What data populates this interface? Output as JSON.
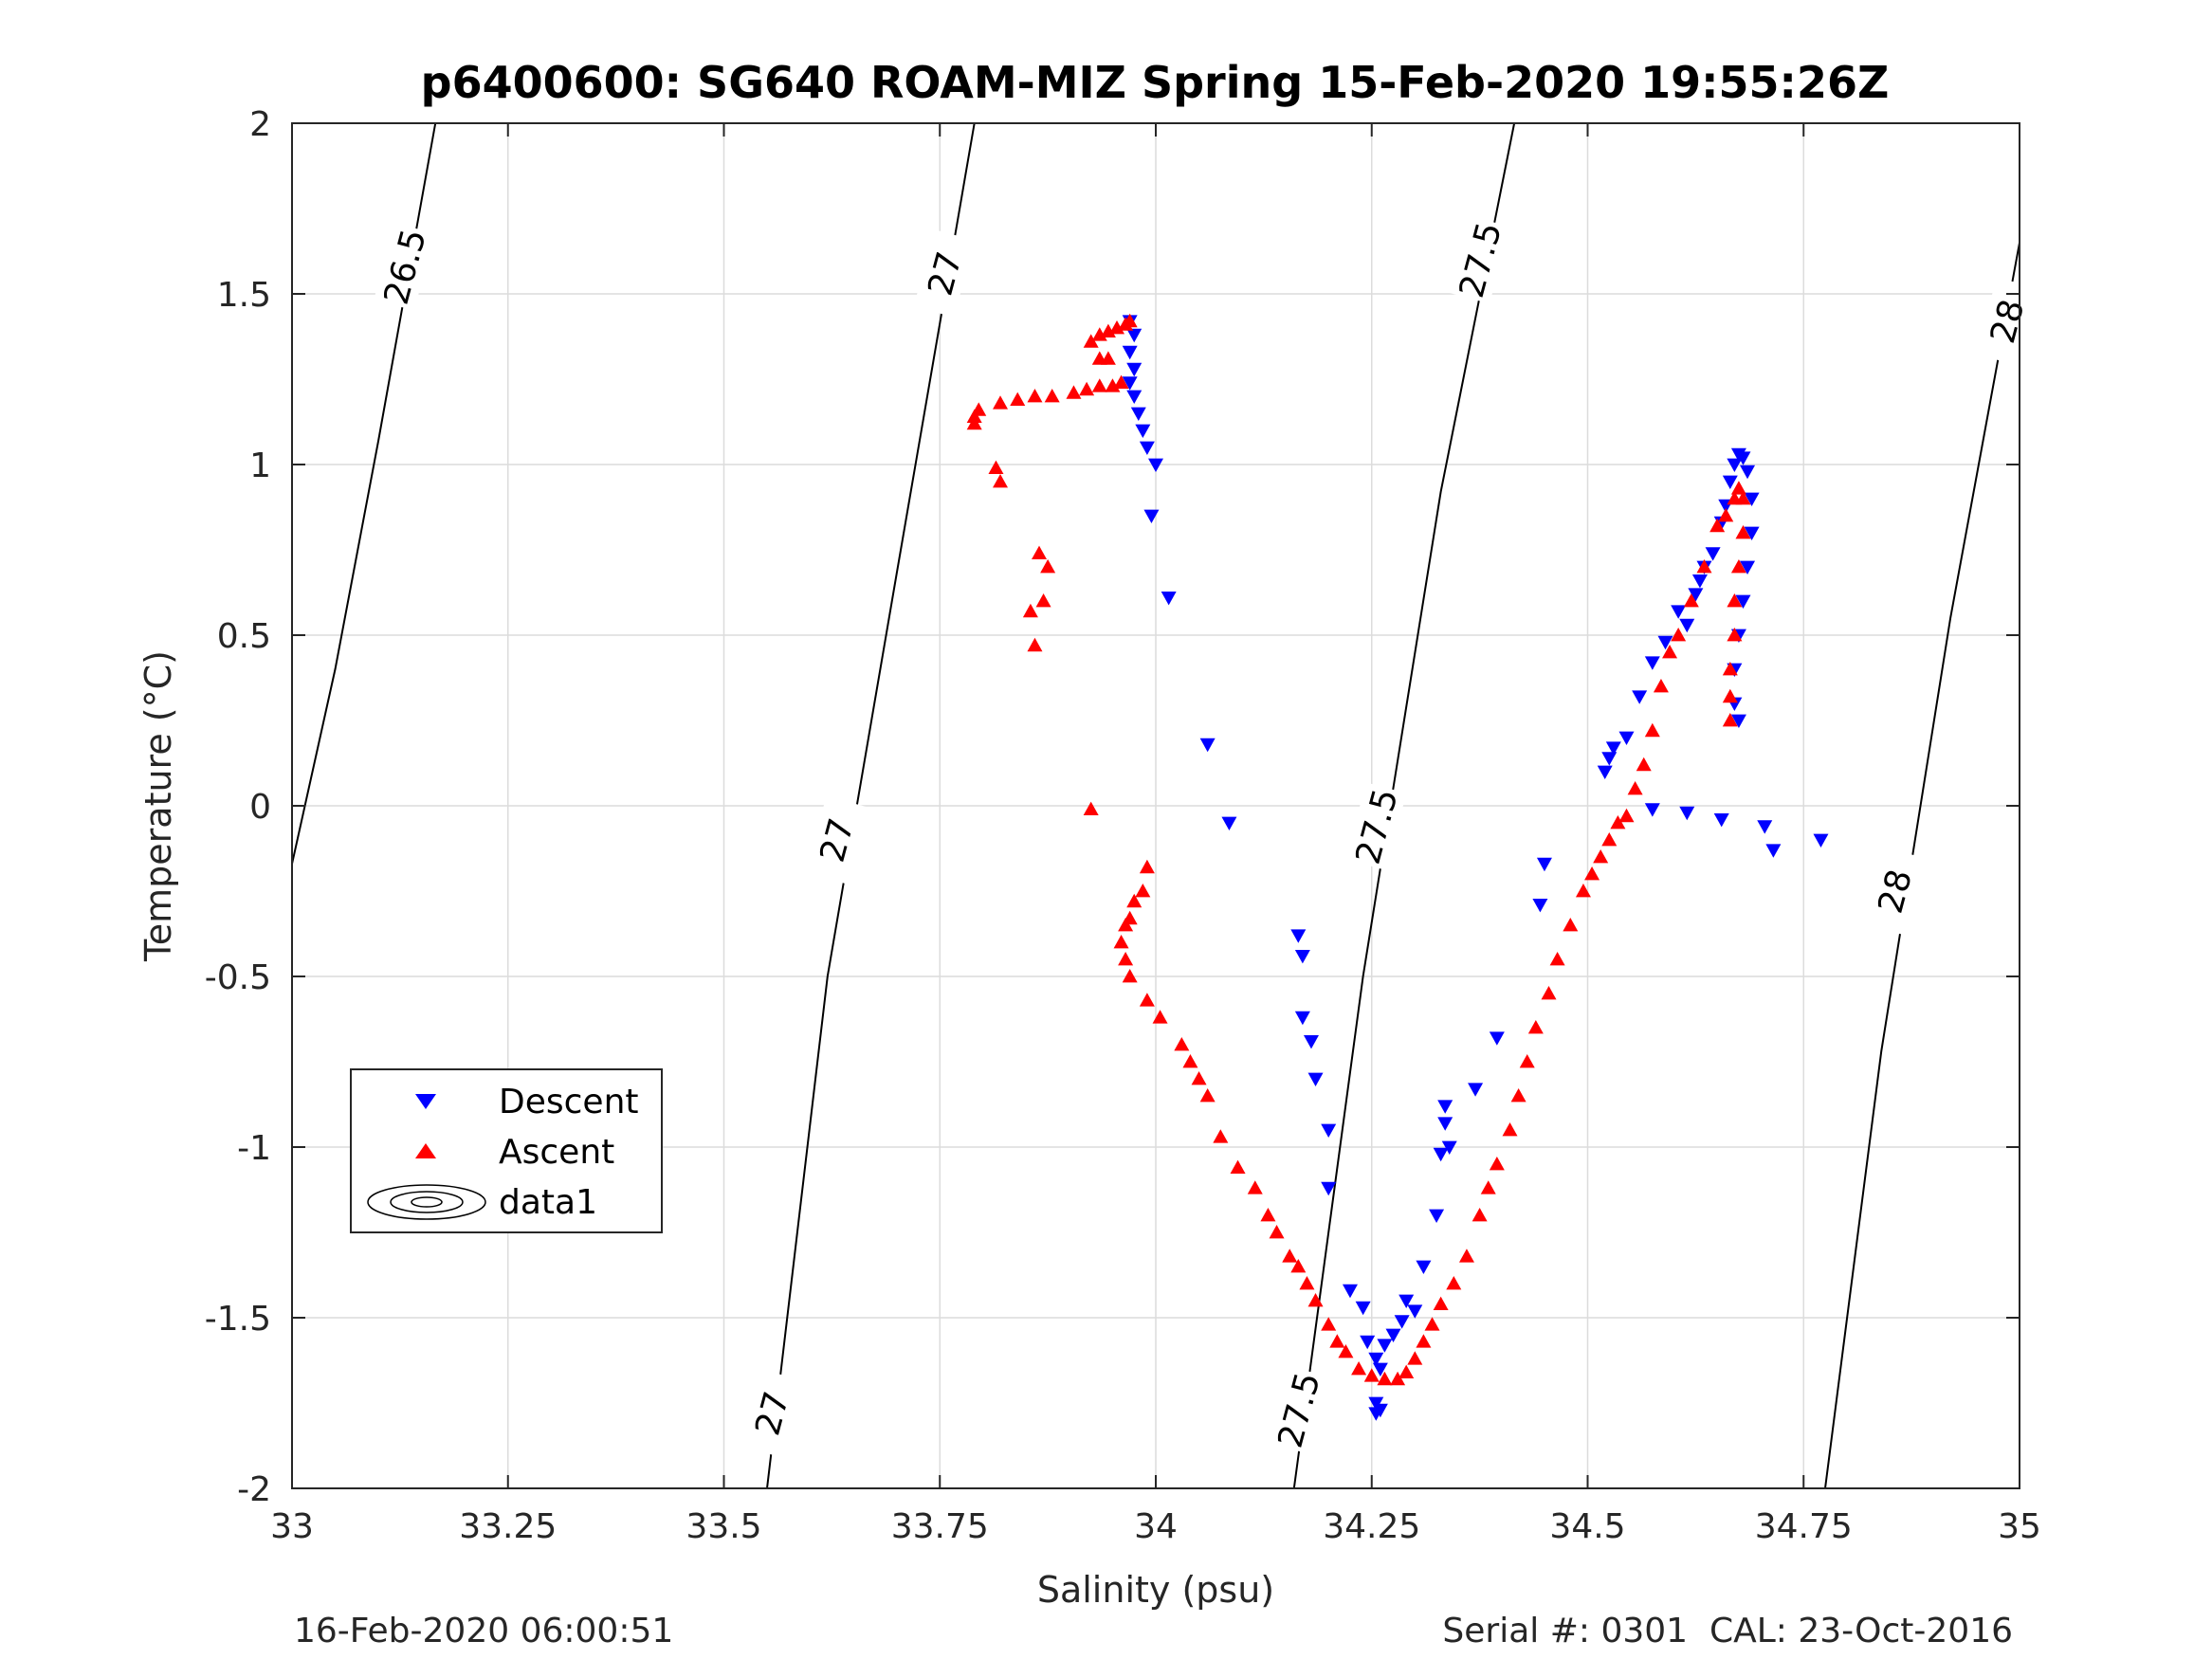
{
  "chart_data": {
    "type": "scatter",
    "title": "p6400600: SG640 ROAM-MIZ Spring 15-Feb-2020 19:55:26Z",
    "xlabel": "Salinity (psu)",
    "ylabel": "Temperature (°C)",
    "xlim": [
      33,
      35
    ],
    "ylim": [
      -2,
      2
    ],
    "xticks": [
      33,
      33.25,
      33.5,
      33.75,
      34,
      34.25,
      34.5,
      34.75,
      35
    ],
    "xtick_labels": [
      "33",
      "33.25",
      "33.5",
      "33.75",
      "34",
      "34.25",
      "34.5",
      "34.75",
      "35"
    ],
    "yticks": [
      -2,
      -1.5,
      -1,
      -0.5,
      0,
      0.5,
      1,
      1.5,
      2
    ],
    "ytick_labels": [
      "-2",
      "-1.5",
      "-1",
      "-0.5",
      "0",
      "0.5",
      "1",
      "1.5",
      "2"
    ],
    "grid": true,
    "legend_placement": "lower-left",
    "series": [
      {
        "name": "Descent",
        "marker": "triangle-down",
        "color": "#0000ff",
        "points": [
          [
            33.97,
            1.42
          ],
          [
            33.975,
            1.38
          ],
          [
            33.97,
            1.33
          ],
          [
            33.975,
            1.28
          ],
          [
            33.97,
            1.24
          ],
          [
            33.975,
            1.2
          ],
          [
            33.98,
            1.15
          ],
          [
            33.985,
            1.1
          ],
          [
            33.99,
            1.05
          ],
          [
            34.0,
            1.0
          ],
          [
            33.995,
            0.85
          ],
          [
            34.015,
            0.61
          ],
          [
            34.06,
            0.18
          ],
          [
            34.085,
            -0.05
          ],
          [
            34.165,
            -0.38
          ],
          [
            34.17,
            -0.44
          ],
          [
            34.17,
            -0.62
          ],
          [
            34.18,
            -0.69
          ],
          [
            34.185,
            -0.8
          ],
          [
            34.2,
            -0.95
          ],
          [
            34.2,
            -1.12
          ],
          [
            34.225,
            -1.42
          ],
          [
            34.24,
            -1.47
          ],
          [
            34.245,
            -1.57
          ],
          [
            34.255,
            -1.62
          ],
          [
            34.26,
            -1.65
          ],
          [
            34.265,
            -1.58
          ],
          [
            34.255,
            -1.75
          ],
          [
            34.255,
            -1.78
          ],
          [
            34.26,
            -1.77
          ],
          [
            34.275,
            -1.55
          ],
          [
            34.285,
            -1.51
          ],
          [
            34.29,
            -1.45
          ],
          [
            34.3,
            -1.48
          ],
          [
            34.31,
            -1.35
          ],
          [
            34.325,
            -1.2
          ],
          [
            34.33,
            -1.02
          ],
          [
            34.335,
            -0.93
          ],
          [
            34.335,
            -0.88
          ],
          [
            34.34,
            -1.0
          ],
          [
            34.37,
            -0.83
          ],
          [
            34.395,
            -0.68
          ],
          [
            34.445,
            -0.29
          ],
          [
            34.45,
            -0.17
          ],
          [
            34.52,
            0.1
          ],
          [
            34.525,
            0.14
          ],
          [
            34.53,
            0.17
          ],
          [
            34.545,
            0.2
          ],
          [
            34.56,
            0.32
          ],
          [
            34.575,
            0.42
          ],
          [
            34.59,
            0.48
          ],
          [
            34.605,
            0.57
          ],
          [
            34.615,
            0.53
          ],
          [
            34.625,
            0.62
          ],
          [
            34.63,
            0.66
          ],
          [
            34.635,
            0.7
          ],
          [
            34.645,
            0.74
          ],
          [
            34.655,
            0.83
          ],
          [
            34.66,
            0.88
          ],
          [
            34.665,
            0.95
          ],
          [
            34.67,
            1.0
          ],
          [
            34.675,
            1.03
          ],
          [
            34.68,
            1.02
          ],
          [
            34.685,
            0.98
          ],
          [
            34.69,
            0.9
          ],
          [
            34.69,
            0.8
          ],
          [
            34.685,
            0.7
          ],
          [
            34.68,
            0.6
          ],
          [
            34.675,
            0.5
          ],
          [
            34.67,
            0.4
          ],
          [
            34.67,
            0.3
          ],
          [
            34.675,
            0.25
          ],
          [
            34.575,
            -0.01
          ],
          [
            34.615,
            -0.02
          ],
          [
            34.655,
            -0.04
          ],
          [
            34.705,
            -0.06
          ],
          [
            34.715,
            -0.13
          ],
          [
            34.77,
            -0.1
          ]
        ]
      },
      {
        "name": "Ascent",
        "marker": "triangle-up",
        "color": "#ff0000",
        "points": [
          [
            33.97,
            1.42
          ],
          [
            33.965,
            1.41
          ],
          [
            33.955,
            1.4
          ],
          [
            33.945,
            1.39
          ],
          [
            33.935,
            1.38
          ],
          [
            33.925,
            1.36
          ],
          [
            33.935,
            1.31
          ],
          [
            33.945,
            1.31
          ],
          [
            33.96,
            1.24
          ],
          [
            33.95,
            1.23
          ],
          [
            33.935,
            1.23
          ],
          [
            33.92,
            1.22
          ],
          [
            33.905,
            1.21
          ],
          [
            33.88,
            1.2
          ],
          [
            33.86,
            1.2
          ],
          [
            33.84,
            1.19
          ],
          [
            33.82,
            1.18
          ],
          [
            33.795,
            1.16
          ],
          [
            33.79,
            1.14
          ],
          [
            33.79,
            1.12
          ],
          [
            33.815,
            0.99
          ],
          [
            33.82,
            0.95
          ],
          [
            33.865,
            0.74
          ],
          [
            33.875,
            0.7
          ],
          [
            33.87,
            0.6
          ],
          [
            33.855,
            0.57
          ],
          [
            33.86,
            0.47
          ],
          [
            33.925,
            -0.01
          ],
          [
            33.99,
            -0.18
          ],
          [
            33.985,
            -0.25
          ],
          [
            33.975,
            -0.28
          ],
          [
            33.97,
            -0.33
          ],
          [
            33.965,
            -0.35
          ],
          [
            33.96,
            -0.4
          ],
          [
            33.965,
            -0.45
          ],
          [
            33.97,
            -0.5
          ],
          [
            33.99,
            -0.57
          ],
          [
            34.005,
            -0.62
          ],
          [
            34.03,
            -0.7
          ],
          [
            34.04,
            -0.75
          ],
          [
            34.05,
            -0.8
          ],
          [
            34.06,
            -0.85
          ],
          [
            34.075,
            -0.97
          ],
          [
            34.095,
            -1.06
          ],
          [
            34.115,
            -1.12
          ],
          [
            34.13,
            -1.2
          ],
          [
            34.14,
            -1.25
          ],
          [
            34.155,
            -1.32
          ],
          [
            34.165,
            -1.35
          ],
          [
            34.175,
            -1.4
          ],
          [
            34.185,
            -1.45
          ],
          [
            34.2,
            -1.52
          ],
          [
            34.21,
            -1.57
          ],
          [
            34.22,
            -1.6
          ],
          [
            34.235,
            -1.65
          ],
          [
            34.25,
            -1.67
          ],
          [
            34.265,
            -1.68
          ],
          [
            34.28,
            -1.68
          ],
          [
            34.29,
            -1.66
          ],
          [
            34.3,
            -1.62
          ],
          [
            34.31,
            -1.57
          ],
          [
            34.32,
            -1.52
          ],
          [
            34.33,
            -1.46
          ],
          [
            34.345,
            -1.4
          ],
          [
            34.36,
            -1.32
          ],
          [
            34.375,
            -1.2
          ],
          [
            34.385,
            -1.12
          ],
          [
            34.395,
            -1.05
          ],
          [
            34.41,
            -0.95
          ],
          [
            34.42,
            -0.85
          ],
          [
            34.43,
            -0.75
          ],
          [
            34.44,
            -0.65
          ],
          [
            34.455,
            -0.55
          ],
          [
            34.465,
            -0.45
          ],
          [
            34.48,
            -0.35
          ],
          [
            34.495,
            -0.25
          ],
          [
            34.505,
            -0.2
          ],
          [
            34.515,
            -0.15
          ],
          [
            34.525,
            -0.1
          ],
          [
            34.535,
            -0.05
          ],
          [
            34.545,
            -0.03
          ],
          [
            34.555,
            0.05
          ],
          [
            34.565,
            0.12
          ],
          [
            34.575,
            0.22
          ],
          [
            34.585,
            0.35
          ],
          [
            34.595,
            0.45
          ],
          [
            34.605,
            0.5
          ],
          [
            34.62,
            0.6
          ],
          [
            34.635,
            0.7
          ],
          [
            34.65,
            0.82
          ],
          [
            34.66,
            0.85
          ],
          [
            34.67,
            0.9
          ],
          [
            34.675,
            0.93
          ],
          [
            34.68,
            0.9
          ],
          [
            34.68,
            0.8
          ],
          [
            34.675,
            0.7
          ],
          [
            34.67,
            0.6
          ],
          [
            34.67,
            0.5
          ],
          [
            34.665,
            0.4
          ],
          [
            34.665,
            0.32
          ],
          [
            34.665,
            0.25
          ]
        ]
      },
      {
        "name": "data1",
        "marker": "contour",
        "color": "#000000",
        "contours": [
          {
            "label": "26.5",
            "points": [
              [
                33.0,
                -0.17
              ],
              [
                33.05,
                0.4
              ],
              [
                33.1,
                1.07
              ],
              [
                33.166,
                2.0
              ]
            ]
          },
          {
            "label": "27",
            "points": [
              [
                33.55,
                -2.0
              ],
              [
                33.62,
                -0.5
              ],
              [
                33.7,
                0.68
              ],
              [
                33.79,
                2.0
              ]
            ]
          },
          {
            "label": "27.5",
            "points": [
              [
                34.16,
                -2.0
              ],
              [
                34.24,
                -0.5
              ],
              [
                34.33,
                0.92
              ],
              [
                34.415,
                2.0
              ]
            ]
          },
          {
            "label": "28",
            "points": [
              [
                34.775,
                -2.0
              ],
              [
                34.84,
                -0.72
              ],
              [
                34.92,
                0.55
              ],
              [
                35.0,
                1.65
              ]
            ]
          }
        ],
        "contour_labels": [
          {
            "text": "26.5",
            "x": 33.13,
            "y": 1.58
          },
          {
            "text": "27",
            "x": 33.755,
            "y": 1.56
          },
          {
            "text": "27",
            "x": 33.63,
            "y": -0.1
          },
          {
            "text": "27",
            "x": 33.555,
            "y": -1.78
          },
          {
            "text": "27.5",
            "x": 34.375,
            "y": 1.6
          },
          {
            "text": "27.5",
            "x": 34.255,
            "y": -0.06
          },
          {
            "text": "27.5",
            "x": 34.165,
            "y": -1.77
          },
          {
            "text": "28",
            "x": 34.985,
            "y": 1.42
          },
          {
            "text": "28",
            "x": 34.855,
            "y": -0.25
          }
        ]
      }
    ]
  },
  "footer": {
    "left": "16-Feb-2020 06:00:51",
    "right": "Serial #: 0301  CAL: 23-Oct-2016"
  }
}
